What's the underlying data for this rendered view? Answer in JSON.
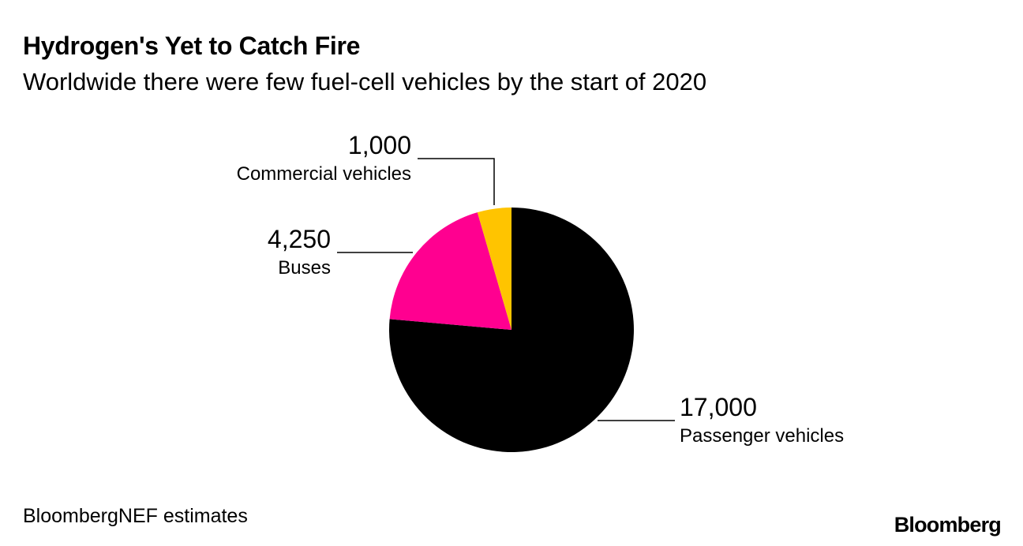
{
  "chart_data": {
    "type": "pie",
    "title": "Hydrogen's Yet to Catch Fire",
    "subtitle": "Worldwide there were few fuel-cell vehicles by the start of 2020",
    "slices": [
      {
        "label": "Passenger vehicles",
        "value": 17000,
        "value_label": "17,000",
        "color": "#000000"
      },
      {
        "label": "Buses",
        "value": 4250,
        "value_label": "4,250",
        "color": "#ff0090"
      },
      {
        "label": "Commercial vehicles",
        "value": 1000,
        "value_label": "1,000",
        "color": "#ffc400"
      }
    ],
    "start": "12 o'clock",
    "direction": "clockwise"
  },
  "footer": {
    "source": "BloombergNEF estimates",
    "brand": "Bloomberg"
  }
}
